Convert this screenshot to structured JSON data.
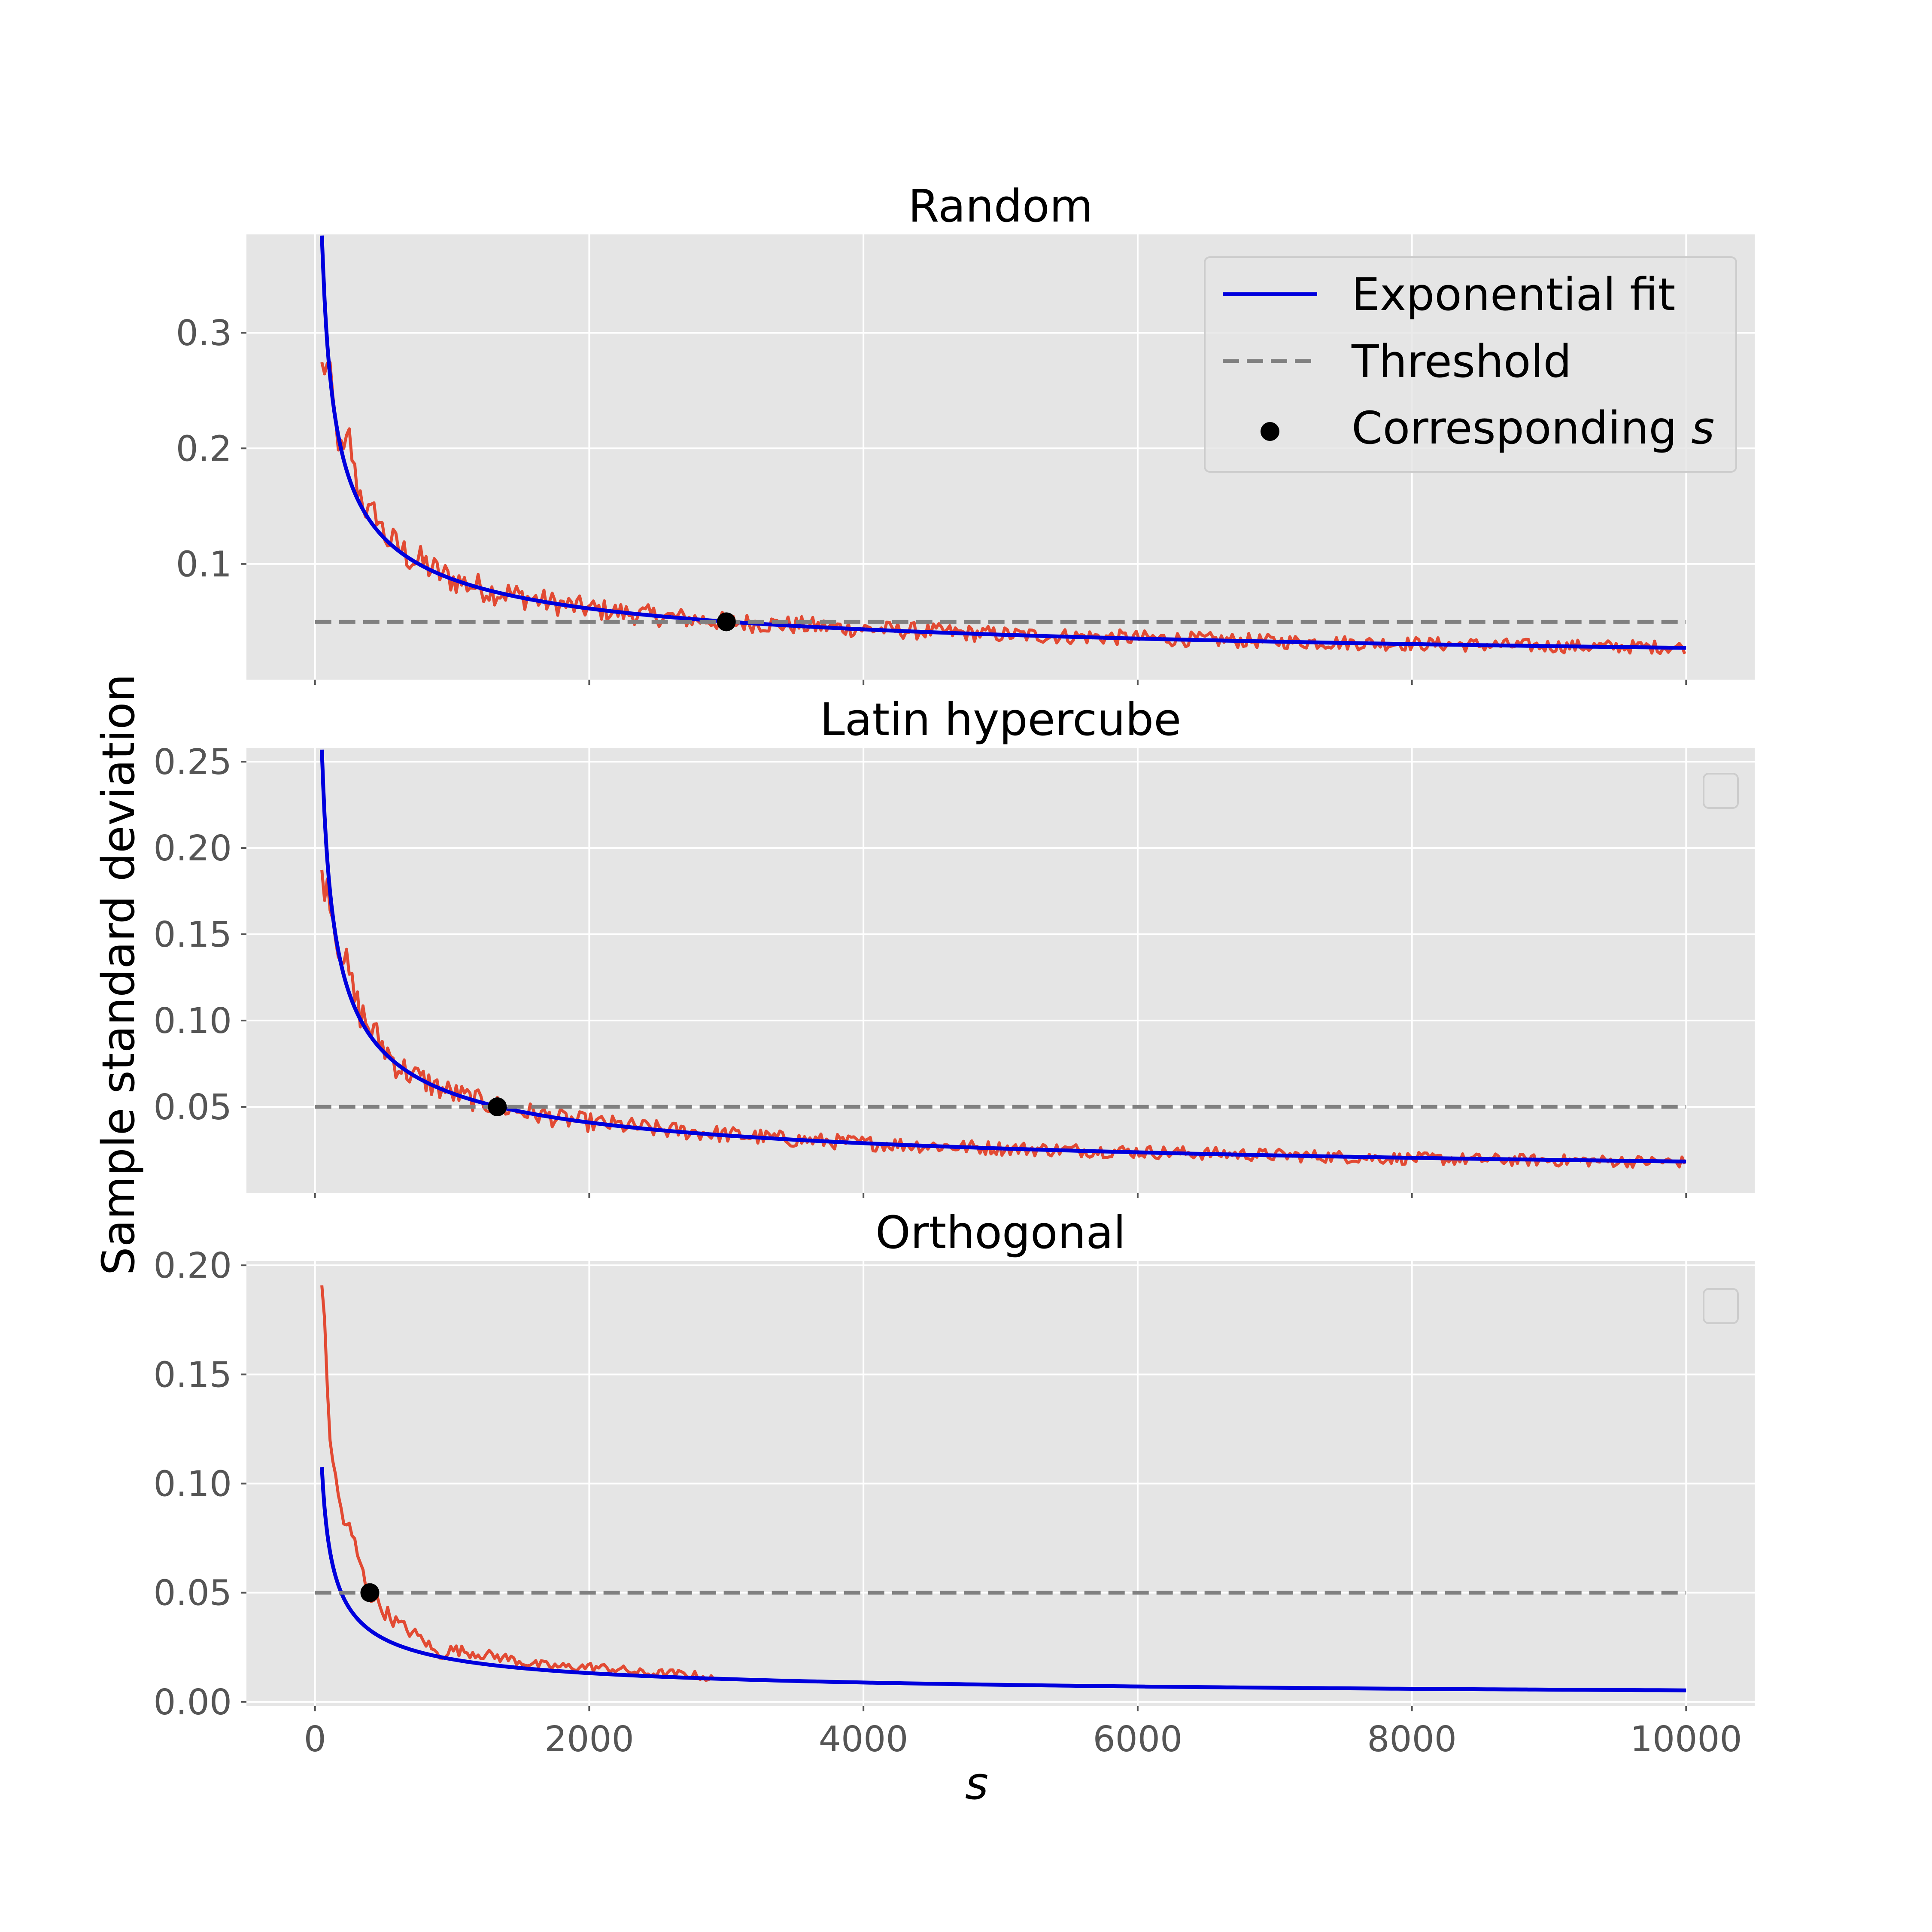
{
  "figure": {
    "ylabel": "Sample standard deviation",
    "xlabel": "s"
  },
  "legend": {
    "fit_label": "Exponential fit",
    "threshold_label": "Threshold",
    "point_label": "Corresponding s",
    "placement": "upper-right of top panel"
  },
  "colors": {
    "background": "#ffffff",
    "panel": "#e5e5e5",
    "grid": "#ffffff",
    "data": "#e24a33",
    "fit": "#0000dd",
    "threshold": "#808080",
    "point": "#000000"
  },
  "chart_data": [
    {
      "type": "line",
      "title": "Random",
      "x_ticks": [
        0,
        2000,
        4000,
        6000,
        8000,
        10000
      ],
      "x_tick_labels_visible": false,
      "y_ticks": [
        0.1,
        0.2,
        0.3
      ],
      "y_tick_labels": [
        "0.1",
        "0.2",
        "0.3"
      ],
      "ylim": [
        0.0,
        0.385
      ],
      "xlim": [
        -500,
        10500
      ],
      "grid": true,
      "fit": {
        "name": "Exponential fit",
        "a": 2.75,
        "b": -0.5,
        "x_range": [
          50,
          10000
        ]
      },
      "data_series": {
        "x_range": [
          50,
          10000
        ],
        "points": [
          [
            100,
            0.27
          ],
          [
            150,
            0.22
          ],
          [
            200,
            0.19
          ],
          [
            250,
            0.21
          ],
          [
            300,
            0.17
          ],
          [
            350,
            0.155
          ],
          [
            400,
            0.14
          ],
          [
            450,
            0.145
          ],
          [
            500,
            0.125
          ],
          [
            550,
            0.12
          ],
          [
            600,
            0.115
          ],
          [
            650,
            0.11
          ],
          [
            700,
            0.105
          ],
          [
            800,
            0.1
          ],
          [
            900,
            0.092
          ],
          [
            1000,
            0.087
          ],
          [
            1100,
            0.083
          ],
          [
            1200,
            0.08
          ],
          [
            1300,
            0.076
          ],
          [
            1400,
            0.075
          ],
          [
            1500,
            0.072
          ],
          [
            1700,
            0.067
          ],
          [
            1900,
            0.063
          ],
          [
            2100,
            0.06
          ],
          [
            2300,
            0.057
          ],
          [
            2500,
            0.055
          ],
          [
            2800,
            0.052
          ],
          [
            3000,
            0.05
          ],
          [
            3500,
            0.047
          ],
          [
            4000,
            0.044
          ],
          [
            5000,
            0.039
          ],
          [
            6000,
            0.036
          ],
          [
            7000,
            0.033
          ],
          [
            8000,
            0.031
          ],
          [
            9000,
            0.029
          ],
          [
            10000,
            0.028
          ]
        ],
        "noise": 0.004
      },
      "threshold": {
        "value": 0.05,
        "x_range": [
          0,
          10000
        ]
      },
      "point": {
        "x": 3000,
        "y": 0.05
      }
    },
    {
      "type": "line",
      "title": "Latin hypercube",
      "x_ticks": [
        0,
        2000,
        4000,
        6000,
        8000,
        10000
      ],
      "x_tick_labels_visible": false,
      "y_ticks": [
        0.05,
        0.1,
        0.15,
        0.2,
        0.25
      ],
      "y_tick_labels": [
        "0.05",
        "0.10",
        "0.15",
        "0.20",
        "0.25"
      ],
      "ylim": [
        0.0,
        0.258
      ],
      "xlim": [
        -500,
        10500
      ],
      "grid": true,
      "fit": {
        "name": "Exponential fit",
        "a": 1.83,
        "b": -0.5,
        "x_range": [
          50,
          10000
        ]
      },
      "data_series": {
        "x_range": [
          50,
          10000
        ],
        "points": [
          [
            100,
            0.18
          ],
          [
            150,
            0.15
          ],
          [
            200,
            0.14
          ],
          [
            300,
            0.11
          ],
          [
            400,
            0.095
          ],
          [
            500,
            0.085
          ],
          [
            600,
            0.074
          ],
          [
            700,
            0.069
          ],
          [
            800,
            0.065
          ],
          [
            900,
            0.061
          ],
          [
            1000,
            0.058
          ],
          [
            1200,
            0.053
          ],
          [
            1400,
            0.049
          ],
          [
            1600,
            0.046
          ],
          [
            1800,
            0.043
          ],
          [
            2000,
            0.041
          ],
          [
            2500,
            0.037
          ],
          [
            3000,
            0.034
          ],
          [
            3500,
            0.031
          ],
          [
            4000,
            0.029
          ],
          [
            5000,
            0.026
          ],
          [
            6000,
            0.024
          ],
          [
            7000,
            0.022
          ],
          [
            8000,
            0.02
          ],
          [
            9000,
            0.019
          ],
          [
            10000,
            0.018
          ]
        ],
        "noise": 0.003
      },
      "threshold": {
        "value": 0.05,
        "x_range": [
          0,
          10000
        ]
      },
      "point": {
        "x": 1330,
        "y": 0.05
      }
    },
    {
      "type": "line",
      "title": "Orthogonal",
      "x_ticks": [
        0,
        2000,
        4000,
        6000,
        8000,
        10000
      ],
      "x_tick_labels": [
        "0",
        "2000",
        "4000",
        "6000",
        "8000",
        "10000"
      ],
      "x_tick_labels_visible": true,
      "y_ticks": [
        0.0,
        0.05,
        0.1,
        0.15,
        0.2
      ],
      "y_tick_labels": [
        "0.00",
        "0.05",
        "0.10",
        "0.15",
        "0.20"
      ],
      "ylim": [
        -0.002,
        0.202
      ],
      "xlim": [
        -500,
        10500
      ],
      "grid": true,
      "fit": {
        "name": "Exponential fit",
        "a": 1.0,
        "b": -0.57,
        "x_range": [
          50,
          10000
        ]
      },
      "data_series": {
        "x_range": [
          50,
          2920
        ],
        "points": [
          [
            50,
            0.195
          ],
          [
            100,
            0.13
          ],
          [
            150,
            0.1
          ],
          [
            200,
            0.085
          ],
          [
            250,
            0.078
          ],
          [
            300,
            0.07
          ],
          [
            350,
            0.058
          ],
          [
            400,
            0.05
          ],
          [
            500,
            0.042
          ],
          [
            600,
            0.036
          ],
          [
            700,
            0.032
          ],
          [
            800,
            0.028
          ],
          [
            900,
            0.021
          ],
          [
            1000,
            0.024
          ],
          [
            1200,
            0.022
          ],
          [
            1400,
            0.02
          ],
          [
            1600,
            0.017
          ],
          [
            1800,
            0.016
          ],
          [
            2000,
            0.016
          ],
          [
            2200,
            0.015
          ],
          [
            2400,
            0.013
          ],
          [
            2600,
            0.013
          ],
          [
            2800,
            0.012
          ],
          [
            2920,
            0.01
          ]
        ],
        "noise": 0.002
      },
      "threshold": {
        "value": 0.05,
        "x_range": [
          0,
          10000
        ]
      },
      "point": {
        "x": 400,
        "y": 0.05
      }
    }
  ]
}
